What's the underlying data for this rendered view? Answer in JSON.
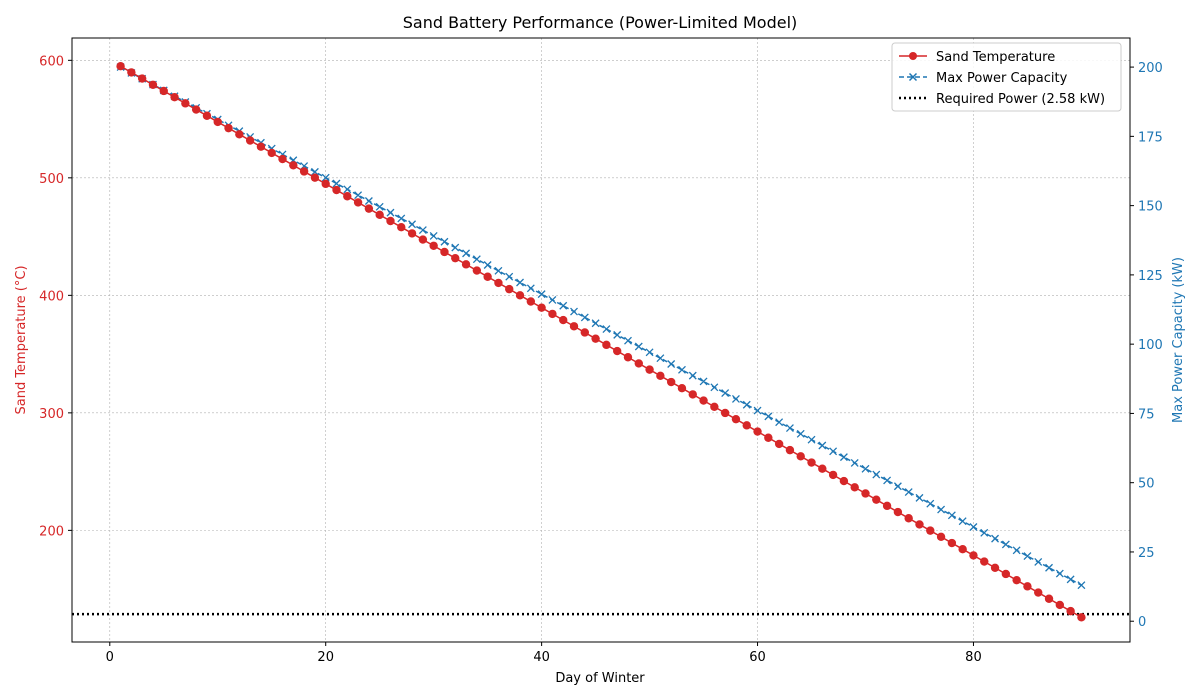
{
  "chart_data": {
    "type": "line",
    "title": "Sand Battery Performance (Power-Limited Model)",
    "xlabel": "Day of Winter",
    "ylabel_left": "Sand Temperature (°C)",
    "ylabel_right": "Max Power Capacity (kW)",
    "xlim": [
      -3.5,
      94.5
    ],
    "ylim_left": [
      105,
      619
    ],
    "ylim_right": [
      -7.5,
      210.5
    ],
    "xticks": [
      0,
      20,
      40,
      60,
      80
    ],
    "yticks_left": [
      200,
      300,
      400,
      500,
      600
    ],
    "yticks_right": [
      0,
      25,
      50,
      75,
      100,
      125,
      150,
      175,
      200
    ],
    "grid": true,
    "legend_position": "top-right",
    "days": {
      "start": 1,
      "end": 90
    },
    "series": [
      {
        "name": "Sand Temperature",
        "axis": "left",
        "color": "#d62728",
        "marker": "circle",
        "line": "solid",
        "start": 595,
        "end": 126
      },
      {
        "name": "Max Power Capacity",
        "axis": "right",
        "color": "#1f77b4",
        "marker": "x",
        "line": "dashed",
        "start": 200,
        "end": 13
      },
      {
        "name": "Required Power (2.58 kW)",
        "axis": "right",
        "color": "#000000",
        "marker": "none",
        "line": "dotted",
        "value": 2.58
      }
    ]
  }
}
